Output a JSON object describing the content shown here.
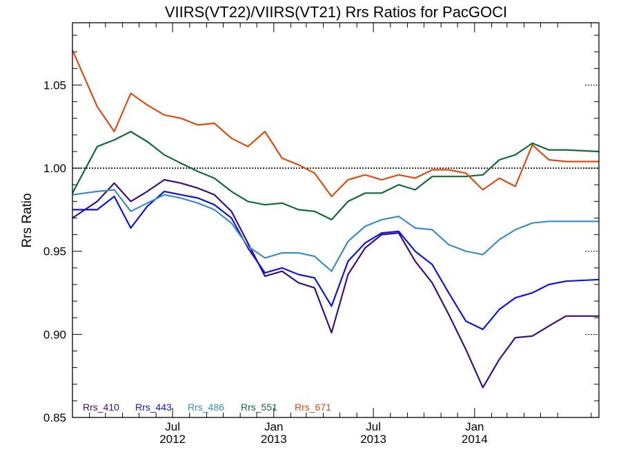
{
  "chart_data": {
    "type": "line",
    "title": "VIIRS(VT22)/VIIRS(VT21)  Rrs Ratios for PacGOCI",
    "xlabel": "",
    "ylabel": "Rrs Ratio",
    "xlim": [
      "2012-01-01",
      "2014-08-15"
    ],
    "ylim": [
      0.85,
      1.0875
    ],
    "yticks": [
      0.85,
      0.9,
      0.95,
      1.0,
      1.05
    ],
    "ytick_labels": [
      "0.85",
      "0.90",
      "0.95",
      "1.00",
      "1.05"
    ],
    "xticks": [
      {
        "date": "2012-07-01",
        "label": "Jul",
        "year": "2012"
      },
      {
        "date": "2013-01-01",
        "label": "Jan",
        "year": "2013"
      },
      {
        "date": "2013-07-01",
        "label": "Jul",
        "year": "2013"
      },
      {
        "date": "2014-01-01",
        "label": "Jan",
        "year": "2014"
      }
    ],
    "reference_line": 1.0,
    "legend_position": "bottom-left",
    "x": [
      "2012-01-01",
      "2012-02-15",
      "2012-03-17",
      "2012-04-16",
      "2012-05-16",
      "2012-06-16",
      "2012-07-16",
      "2012-08-16",
      "2012-09-15",
      "2012-10-16",
      "2012-11-15",
      "2012-12-16",
      "2013-01-16",
      "2013-02-15",
      "2013-03-16",
      "2013-04-16",
      "2013-05-16",
      "2013-06-16",
      "2013-07-16",
      "2013-08-16",
      "2013-09-15",
      "2013-10-16",
      "2013-11-15",
      "2013-12-16",
      "2014-01-16",
      "2014-02-15",
      "2014-03-16",
      "2014-04-16",
      "2014-05-16",
      "2014-06-16",
      "2014-08-15"
    ],
    "series": [
      {
        "name": "Rrs_410",
        "color": "#3a0d7a",
        "values": [
          0.97,
          0.98,
          0.991,
          0.98,
          0.986,
          0.993,
          0.991,
          0.988,
          0.984,
          0.974,
          0.955,
          0.935,
          0.938,
          0.931,
          0.928,
          0.901,
          0.936,
          0.952,
          0.96,
          0.961,
          0.944,
          0.931,
          0.912,
          0.891,
          0.868,
          0.885,
          0.898,
          0.899,
          0.905,
          0.911,
          0.911
        ]
      },
      {
        "name": "Rrs_443",
        "color": "#0a12e6",
        "values": [
          0.975,
          0.975,
          0.983,
          0.964,
          0.977,
          0.986,
          0.984,
          0.982,
          0.978,
          0.97,
          0.952,
          0.937,
          0.94,
          0.936,
          0.934,
          0.917,
          0.944,
          0.955,
          0.961,
          0.962,
          0.95,
          0.942,
          0.925,
          0.908,
          0.903,
          0.915,
          0.922,
          0.925,
          0.93,
          0.932,
          0.933
        ]
      },
      {
        "name": "Rrs_486",
        "color": "#3a8cc6",
        "values": [
          0.984,
          0.986,
          0.987,
          0.974,
          0.979,
          0.984,
          0.982,
          0.979,
          0.975,
          0.967,
          0.953,
          0.946,
          0.949,
          0.949,
          0.947,
          0.938,
          0.956,
          0.965,
          0.969,
          0.971,
          0.964,
          0.963,
          0.954,
          0.95,
          0.948,
          0.957,
          0.963,
          0.967,
          0.968,
          0.968,
          0.968
        ]
      },
      {
        "name": "Rrs_551",
        "color": "#0e6b35",
        "values": [
          0.985,
          1.013,
          1.017,
          1.022,
          1.016,
          1.008,
          1.003,
          0.998,
          0.994,
          0.986,
          0.98,
          0.978,
          0.979,
          0.975,
          0.974,
          0.969,
          0.98,
          0.985,
          0.985,
          0.99,
          0.987,
          0.995,
          0.995,
          0.995,
          0.996,
          1.005,
          1.008,
          1.015,
          1.011,
          1.011,
          1.01
        ]
      },
      {
        "name": "Rrs_671",
        "color": "#dc4a0e",
        "values": [
          1.071,
          1.037,
          1.022,
          1.045,
          1.038,
          1.032,
          1.03,
          1.026,
          1.027,
          1.018,
          1.013,
          1.022,
          1.006,
          1.002,
          0.997,
          0.983,
          0.993,
          0.996,
          0.993,
          0.996,
          0.994,
          0.999,
          0.999,
          0.997,
          0.987,
          0.994,
          0.989,
          1.014,
          1.005,
          1.004,
          1.004
        ]
      }
    ]
  }
}
